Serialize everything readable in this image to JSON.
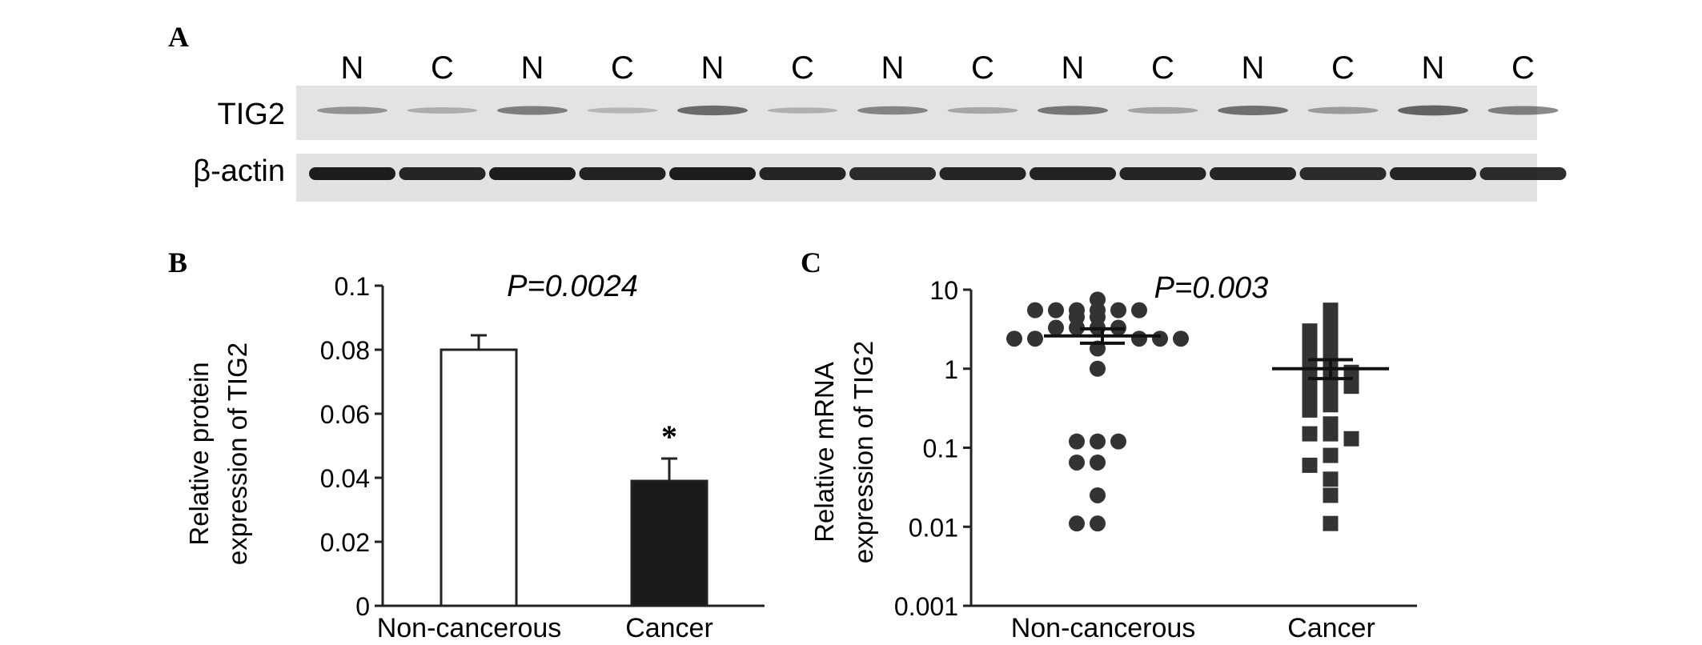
{
  "panel_a": {
    "label": "A",
    "lanes": [
      "N",
      "C",
      "N",
      "C",
      "N",
      "C",
      "N",
      "C",
      "N",
      "C",
      "N",
      "C",
      "N",
      "C"
    ],
    "rows": [
      {
        "label": "TIG2",
        "band_intensity": [
          0.35,
          0.18,
          0.5,
          0.12,
          0.62,
          0.15,
          0.45,
          0.22,
          0.55,
          0.25,
          0.6,
          0.3,
          0.68,
          0.5
        ]
      },
      {
        "label": "β-actin",
        "band_intensity": [
          0.95,
          0.9,
          0.95,
          0.92,
          0.95,
          0.9,
          0.88,
          0.9,
          0.92,
          0.9,
          0.9,
          0.88,
          0.9,
          0.88
        ]
      }
    ]
  },
  "chart_data": [
    {
      "panel": "B",
      "type": "bar",
      "categories": [
        "Non-cancerous",
        "Cancer"
      ],
      "values": [
        0.08,
        0.039
      ],
      "errors": [
        0.0045,
        0.007
      ],
      "bar_colors": [
        "#ffffff",
        "#1a1a1a"
      ],
      "significance_marks": [
        "",
        "*"
      ],
      "ylabel": [
        "Relative protein",
        "expression of TIG2"
      ],
      "annotation": "P=0.0024",
      "ylim": [
        0,
        0.1
      ],
      "yticks": [
        0,
        0.02,
        0.04,
        0.06,
        0.08,
        0.1
      ],
      "ytick_labels": [
        "0",
        "0.02",
        "0.04",
        "0.06",
        "0.08",
        "0.1"
      ]
    },
    {
      "panel": "C",
      "type": "scatter",
      "yscale": "log",
      "categories": [
        "Non-cancerous",
        "Cancer"
      ],
      "series": [
        {
          "marker": "circle",
          "mean": 2.6,
          "sem_low": 2.1,
          "sem_high": 3.2,
          "points": [
            5.5,
            5.5,
            5.5,
            5.5,
            5.5,
            5.5,
            7.5,
            4.5,
            4.5,
            3.3,
            3.3,
            3.3,
            3.3,
            2.4,
            2.4,
            2.4,
            2.4,
            2.4,
            1.8,
            1.0,
            0.12,
            0.12,
            0.12,
            0.065,
            0.065,
            0.025,
            0.011,
            0.011
          ]
        },
        {
          "marker": "square",
          "mean": 1.0,
          "sem_low": 0.75,
          "sem_high": 1.3,
          "points": [
            5.5,
            4.2,
            3.0,
            3.0,
            2.0,
            2.0,
            1.3,
            1.3,
            0.95,
            0.9,
            0.9,
            0.7,
            0.6,
            0.6,
            0.45,
            0.45,
            0.35,
            0.3,
            0.2,
            0.15,
            0.15,
            0.13,
            0.08,
            0.06,
            0.04,
            0.025,
            0.011
          ]
        }
      ],
      "ylabel": [
        "Relative mRNA",
        "expression of TIG2"
      ],
      "annotation": "P=0.003",
      "ylim": [
        0.001,
        10
      ],
      "yticks": [
        0.001,
        0.01,
        0.1,
        1,
        10
      ],
      "ytick_labels": [
        "0.001",
        "0.01",
        "0.1",
        "1",
        "10"
      ]
    }
  ],
  "labels": {
    "b": "B",
    "c": "C"
  }
}
